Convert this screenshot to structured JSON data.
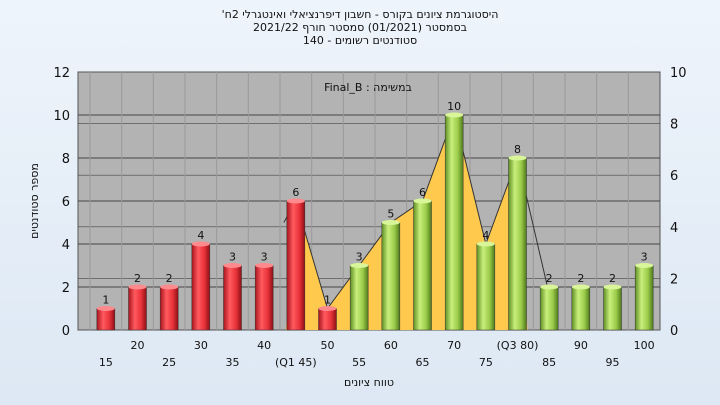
{
  "chart_data": {
    "type": "bar",
    "title_lines": [
      "'היסטוגרמת ציונים בקורס - חשבון דיפרנציאלי ואינטגרלי 2ח",
      "בסמסטר  (01/2021)  סמסטר חורף  2021/22",
      "140 - סטודנטים רשומים"
    ],
    "annotation": "Final_B : במשימה",
    "ylabel": "מספר סטודנטים",
    "xlabel": "טווח ציונים",
    "ylim": [
      0,
      12
    ],
    "yticks": [
      0,
      2,
      4,
      6,
      8,
      10,
      12
    ],
    "y2lim": [
      0,
      10
    ],
    "y2ticks": [
      0,
      2,
      4,
      6,
      8,
      10
    ],
    "grid": true,
    "categories": [
      "15",
      "20",
      "25",
      "30",
      "35",
      "40",
      "(Q1 45)",
      "50",
      "55",
      "60",
      "65",
      "70",
      "75",
      "(Q3 80)",
      "85",
      "90",
      "95",
      "100"
    ],
    "values": [
      1,
      2,
      2,
      4,
      3,
      3,
      6,
      1,
      3,
      5,
      6,
      10,
      4,
      8,
      2,
      2,
      2,
      3
    ],
    "bar_colors": [
      "red",
      "red",
      "red",
      "red",
      "red",
      "red",
      "red",
      "red",
      "green",
      "green",
      "green",
      "green",
      "green",
      "green",
      "green",
      "green",
      "green",
      "green"
    ],
    "area_series": {
      "description": "yellow band between first and third quartile",
      "range": [
        "(Q1 45)",
        "(Q3 80)"
      ]
    }
  },
  "colors": {
    "red_bar": "#e8323a",
    "green_bar": "#9ccc4a",
    "area": "#ffc94d",
    "plot_bg": "#b3b3b3"
  }
}
